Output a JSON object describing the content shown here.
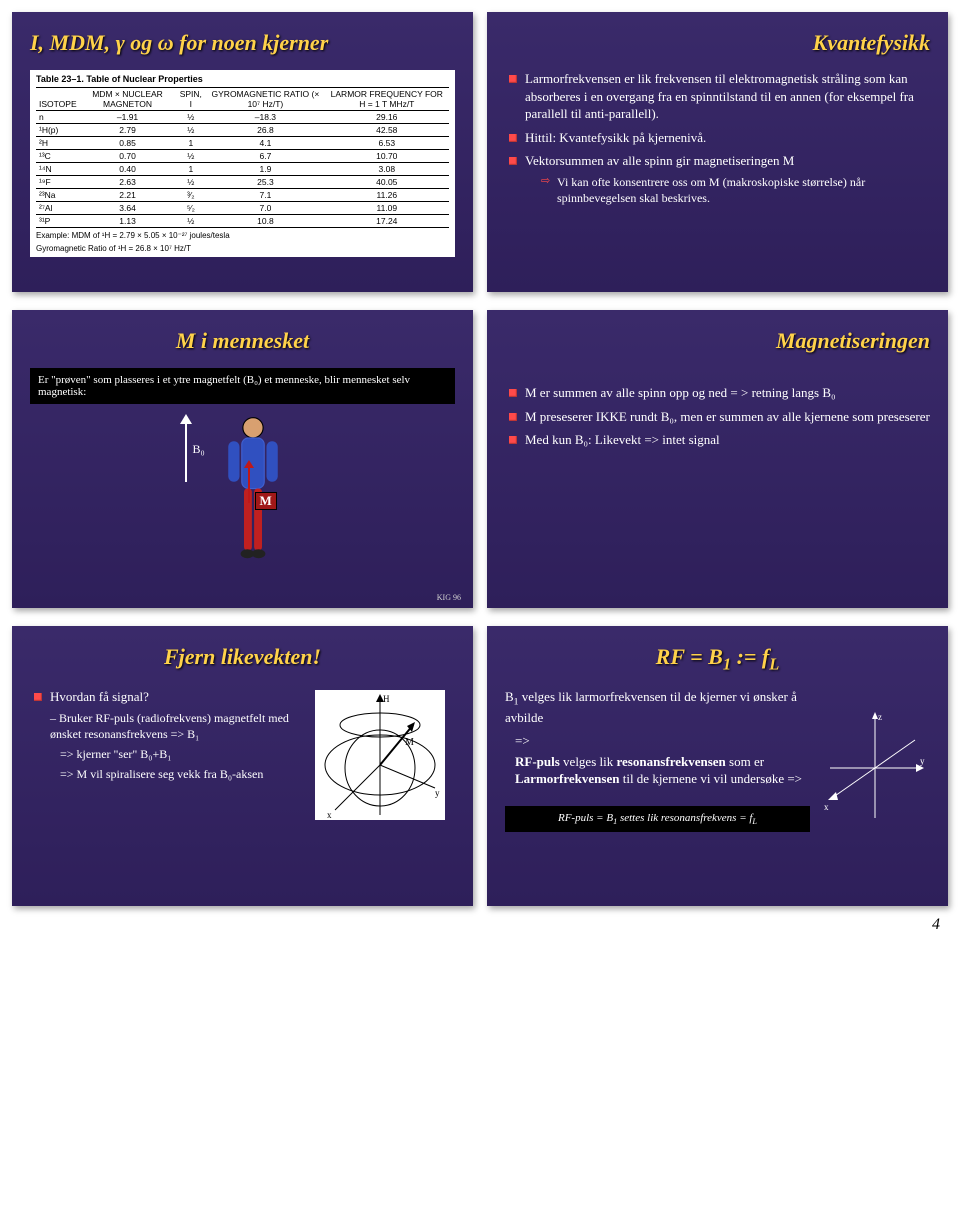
{
  "page_number": "4",
  "slides": {
    "s1": {
      "title": "I, MDM, γ og ω for noen kjerner",
      "table_title": "Table 23–1.  Table of Nuclear Properties",
      "columns": [
        "ISOTOPE",
        "MDM × NUCLEAR MAGNETON",
        "SPIN, I",
        "GYROMAGNETIC RATIO (× 10⁷ Hz/T)",
        "LARMOR FREQUENCY FOR H = 1 T MHz/T"
      ],
      "rows": [
        [
          "n",
          "–1.91",
          "½",
          "–18.3",
          "29.16"
        ],
        [
          "¹H(p)",
          "2.79",
          "½",
          "26.8",
          "42.58"
        ],
        [
          "²H",
          "0.85",
          "1",
          "4.1",
          "6.53"
        ],
        [
          "¹³C",
          "0.70",
          "½",
          "6.7",
          "10.70"
        ],
        [
          "¹⁴N",
          "0.40",
          "1",
          "1.9",
          "3.08"
        ],
        [
          "¹⁹F",
          "2.63",
          "½",
          "25.3",
          "40.05"
        ],
        [
          "²³Na",
          "2.21",
          "³⁄₂",
          "7.1",
          "11.26"
        ],
        [
          "²⁷Al",
          "3.64",
          "⁵⁄₂",
          "7.0",
          "11.09"
        ],
        [
          "³¹P",
          "1.13",
          "½",
          "10.8",
          "17.24"
        ]
      ],
      "example1": "Example: MDM of ¹H = 2.79 × 5.05 × 10⁻²⁷ joules/tesla",
      "example2": "Gyromagnetic Ratio of ¹H = 26.8 × 10⁷ Hz/T"
    },
    "s2": {
      "title": "Kvantefysikk",
      "b1": "Larmorfrekvensen er lik frekvensen til elektromagnetisk stråling som kan absorberes i en overgang fra en spinntilstand til en annen (for eksempel fra parallell til anti-parallell).",
      "b2": "Hittil: Kvantefysikk på kjernenivå.",
      "b3": "Vektorsummen av alle spinn gir magnetiseringen M",
      "b3s": "Vi kan ofte konsentrere oss om M (makroskopiske størrelse) når spinnbevegelsen skal beskrives."
    },
    "s3": {
      "title": "M i mennesket",
      "box": "Er \"prøven\" som plasseres i et ytre magnetfelt (B₀) et menneske, blir mennesket selv magnetisk:",
      "b0": "B₀",
      "m": "M",
      "kig": "KIG 96"
    },
    "s4": {
      "title": "Magnetiseringen",
      "b1": "M er summen av alle spinn opp og ned = > retning langs B₀",
      "b2": "M preseserer IKKE rundt B₀, men er summen av alle kjernene som preseserer",
      "b3": "Med kun B₀: Likevekt => intet signal"
    },
    "s5": {
      "title": "Fjern likevekten!",
      "b1": "Hvordan få signal?",
      "d1": "Bruker RF-puls (radiofrekvens) magnetfelt med ønsket resonansfrekvens => B₁",
      "d2": "=> kjerner \"ser\" B₀+B₁",
      "d3": "=> M vil spiralisere seg vekk fra B₀-aksen"
    },
    "s6": {
      "title": "RF = B₁ := f_L",
      "p1a": "B₁ velges lik larmorfrekvensen til de kjerner vi ønsker å avbilde",
      "arrow": "=>",
      "p2a": "RF-puls velges lik resonansfrekvensen som er Larmorfrekvensen til de kjernene vi vil undersøke =>",
      "rf_label": "RF-puls",
      "res_label": "resonansfrekvensen",
      "lar_label": "Larmorfrekvensen",
      "box": "RF-puls = B₁ settes lik resonansfrekvens = f_L"
    }
  }
}
